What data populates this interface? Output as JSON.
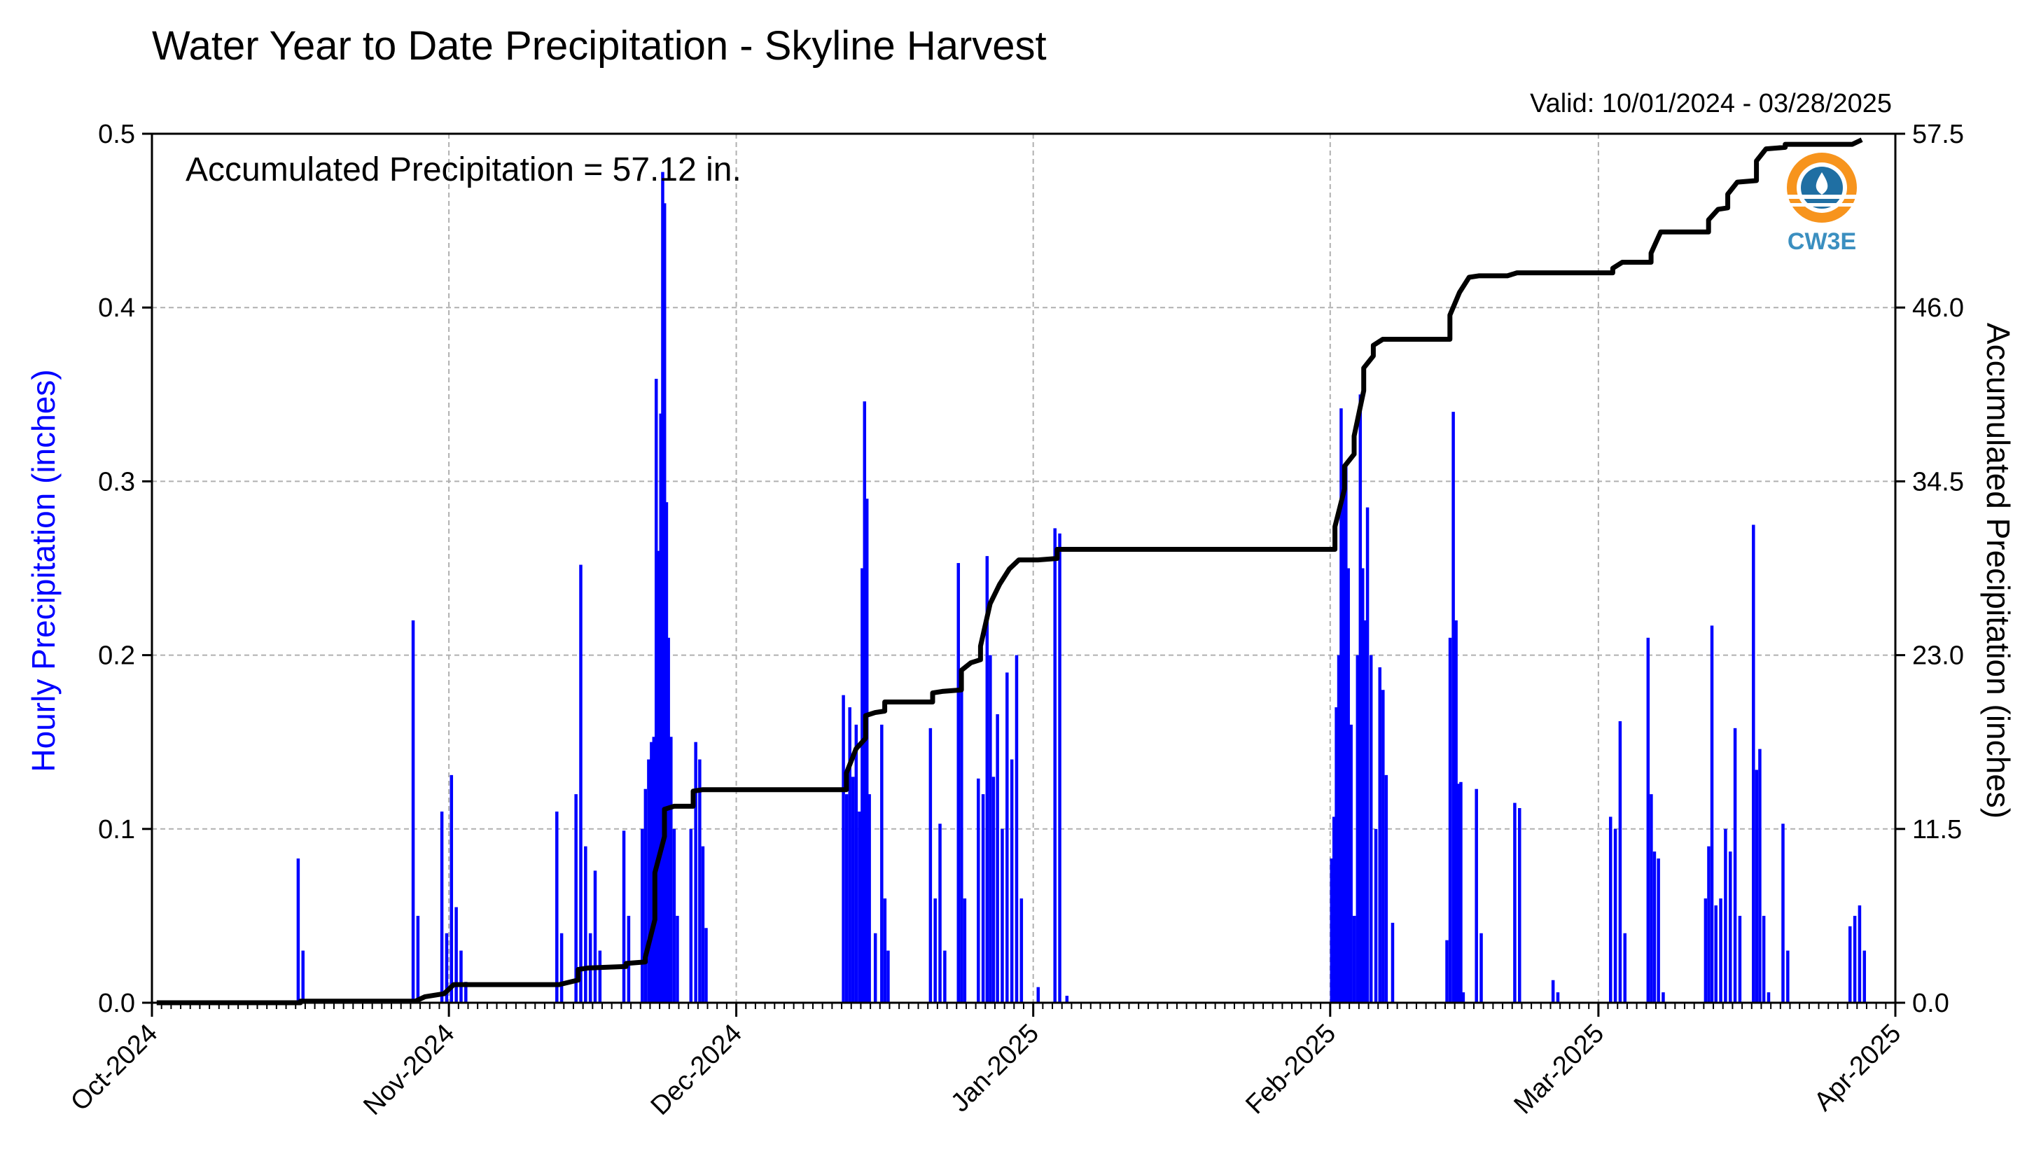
{
  "chart_data": {
    "type": "bar+line",
    "title": "Water Year to Date Precipitation - Skyline Harvest",
    "valid_label": "Valid: 10/01/2024 - 03/28/2025",
    "annotation": "Accumulated Precipitation = 57.12 in.",
    "left_axis": {
      "label": "Hourly Precipitation (inches)",
      "ylim": [
        0,
        0.5
      ],
      "ticks": [
        "0.0",
        "0.1",
        "0.2",
        "0.3",
        "0.4",
        "0.5"
      ],
      "color": "#0000ff"
    },
    "right_axis": {
      "label": "Accumulated Precipitation (inches)",
      "ylim": [
        0,
        57.5
      ],
      "ticks": [
        "0.0",
        "11.5",
        "23.0",
        "34.5",
        "46.0",
        "57.5"
      ]
    },
    "x_axis": {
      "start": "2024-10-01",
      "end": "2025-04-01",
      "month_ticks": [
        "Oct-2024",
        "Nov-2024",
        "Dec-2024",
        "Jan-2025",
        "Feb-2025",
        "Mar-2025",
        "Apr-2025"
      ]
    },
    "grid": true,
    "series": [
      {
        "name": "Hourly Precipitation (inches)",
        "type": "bar",
        "color": "#0000ff",
        "points": [
          [
            "2024-10-16",
            0.083
          ],
          [
            "2024-10-16",
            0.03
          ],
          [
            "2024-10-28",
            0.22
          ],
          [
            "2024-10-28",
            0.05
          ],
          [
            "2024-10-31",
            0.11
          ],
          [
            "2024-10-31",
            0.04
          ],
          [
            "2024-11-01",
            0.131
          ],
          [
            "2024-11-01",
            0.055
          ],
          [
            "2024-11-02",
            0.03
          ],
          [
            "2024-11-02",
            0.012
          ],
          [
            "2024-11-12",
            0.11
          ],
          [
            "2024-11-12",
            0.04
          ],
          [
            "2024-11-14",
            0.12
          ],
          [
            "2024-11-14",
            0.252
          ],
          [
            "2024-11-15",
            0.09
          ],
          [
            "2024-11-15",
            0.04
          ],
          [
            "2024-11-16",
            0.076
          ],
          [
            "2024-11-16",
            0.03
          ],
          [
            "2024-11-19",
            0.099
          ],
          [
            "2024-11-19",
            0.05
          ],
          [
            "2024-11-21",
            0.1
          ],
          [
            "2024-11-21",
            0.123
          ],
          [
            "2024-11-21",
            0.14
          ],
          [
            "2024-11-22",
            0.15
          ],
          [
            "2024-11-22",
            0.153
          ],
          [
            "2024-11-22",
            0.359
          ],
          [
            "2024-11-22",
            0.26
          ],
          [
            "2024-11-23",
            0.339
          ],
          [
            "2024-11-23",
            0.478
          ],
          [
            "2024-11-23",
            0.46
          ],
          [
            "2024-11-23",
            0.288
          ],
          [
            "2024-11-23",
            0.21
          ],
          [
            "2024-11-24",
            0.153
          ],
          [
            "2024-11-24",
            0.1
          ],
          [
            "2024-11-24",
            0.05
          ],
          [
            "2024-11-26",
            0.1
          ],
          [
            "2024-11-26",
            0.15
          ],
          [
            "2024-11-27",
            0.14
          ],
          [
            "2024-11-27",
            0.09
          ],
          [
            "2024-11-27",
            0.043
          ],
          [
            "2024-12-12",
            0.177
          ],
          [
            "2024-12-12",
            0.12
          ],
          [
            "2024-12-12",
            0.17
          ],
          [
            "2024-12-13",
            0.13
          ],
          [
            "2024-12-13",
            0.16
          ],
          [
            "2024-12-13",
            0.11
          ],
          [
            "2024-12-14",
            0.25
          ],
          [
            "2024-12-14",
            0.346
          ],
          [
            "2024-12-14",
            0.29
          ],
          [
            "2024-12-14",
            0.12
          ],
          [
            "2024-12-15",
            0.04
          ],
          [
            "2024-12-16",
            0.16
          ],
          [
            "2024-12-16",
            0.06
          ],
          [
            "2024-12-16",
            0.03
          ],
          [
            "2024-12-21",
            0.158
          ],
          [
            "2024-12-21",
            0.06
          ],
          [
            "2024-12-22",
            0.103
          ],
          [
            "2024-12-22",
            0.03
          ],
          [
            "2024-12-24",
            0.253
          ],
          [
            "2024-12-24",
            0.18
          ],
          [
            "2024-12-24",
            0.06
          ],
          [
            "2024-12-26",
            0.129
          ],
          [
            "2024-12-26",
            0.12
          ],
          [
            "2024-12-27",
            0.257
          ],
          [
            "2024-12-27",
            0.2
          ],
          [
            "2024-12-27",
            0.13
          ],
          [
            "2024-12-28",
            0.166
          ],
          [
            "2024-12-28",
            0.1
          ],
          [
            "2024-12-29",
            0.19
          ],
          [
            "2024-12-29",
            0.14
          ],
          [
            "2024-12-30",
            0.2
          ],
          [
            "2024-12-30",
            0.06
          ],
          [
            "2025-01-01",
            0.009
          ],
          [
            "2025-01-03",
            0.273
          ],
          [
            "2025-01-03",
            0.27
          ],
          [
            "2025-01-04",
            0.004
          ],
          [
            "2025-02-01",
            0.083
          ],
          [
            "2025-02-01",
            0.107
          ],
          [
            "2025-02-01",
            0.17
          ],
          [
            "2025-02-01",
            0.2
          ],
          [
            "2025-02-02",
            0.342
          ],
          [
            "2025-02-02",
            0.3
          ],
          [
            "2025-02-02",
            0.31
          ],
          [
            "2025-02-02",
            0.25
          ],
          [
            "2025-02-03",
            0.16
          ],
          [
            "2025-02-03",
            0.05
          ],
          [
            "2025-02-03",
            0.2
          ],
          [
            "2025-02-04",
            0.35
          ],
          [
            "2025-02-04",
            0.25
          ],
          [
            "2025-02-04",
            0.22
          ],
          [
            "2025-02-04",
            0.285
          ],
          [
            "2025-02-05",
            0.2
          ],
          [
            "2025-02-05",
            0.1
          ],
          [
            "2025-02-06",
            0.193
          ],
          [
            "2025-02-06",
            0.18
          ],
          [
            "2025-02-06",
            0.131
          ],
          [
            "2025-02-07",
            0.046
          ],
          [
            "2025-02-13",
            0.036
          ],
          [
            "2025-02-13",
            0.21
          ],
          [
            "2025-02-13",
            0.34
          ],
          [
            "2025-02-14",
            0.22
          ],
          [
            "2025-02-14",
            0.126
          ],
          [
            "2025-02-14",
            0.127
          ],
          [
            "2025-02-14",
            0.006
          ],
          [
            "2025-02-16",
            0.123
          ],
          [
            "2025-02-16",
            0.04
          ],
          [
            "2025-02-20",
            0.115
          ],
          [
            "2025-02-20",
            0.112
          ],
          [
            "2025-02-24",
            0.013
          ],
          [
            "2025-02-24",
            0.006
          ],
          [
            "2025-03-02",
            0.107
          ],
          [
            "2025-03-02",
            0.1
          ],
          [
            "2025-03-03",
            0.162
          ],
          [
            "2025-03-03",
            0.04
          ],
          [
            "2025-03-06",
            0.21
          ],
          [
            "2025-03-06",
            0.12
          ],
          [
            "2025-03-06",
            0.087
          ],
          [
            "2025-03-07",
            0.083
          ],
          [
            "2025-03-07",
            0.006
          ],
          [
            "2025-03-12",
            0.06
          ],
          [
            "2025-03-12",
            0.09
          ],
          [
            "2025-03-12",
            0.217
          ],
          [
            "2025-03-13",
            0.056
          ],
          [
            "2025-03-13",
            0.06
          ],
          [
            "2025-03-14",
            0.1
          ],
          [
            "2025-03-14",
            0.087
          ],
          [
            "2025-03-15",
            0.158
          ],
          [
            "2025-03-15",
            0.05
          ],
          [
            "2025-03-17",
            0.275
          ],
          [
            "2025-03-17",
            0.134
          ],
          [
            "2025-03-17",
            0.146
          ],
          [
            "2025-03-18",
            0.05
          ],
          [
            "2025-03-18",
            0.006
          ],
          [
            "2025-03-20",
            0.103
          ],
          [
            "2025-03-20",
            0.03
          ],
          [
            "2025-03-27",
            0.044
          ],
          [
            "2025-03-27",
            0.05
          ],
          [
            "2025-03-28",
            0.056
          ],
          [
            "2025-03-28",
            0.03
          ]
        ]
      },
      {
        "name": "Accumulated Precipitation (inches)",
        "type": "line",
        "color": "#000000",
        "points": [
          [
            "2024-10-01",
            0.0
          ],
          [
            "2024-10-16",
            0.0
          ],
          [
            "2024-10-16",
            0.1
          ],
          [
            "2024-10-28",
            0.1
          ],
          [
            "2024-10-29",
            0.4
          ],
          [
            "2024-10-31",
            0.6
          ],
          [
            "2024-11-01",
            1.2
          ],
          [
            "2024-11-12",
            1.2
          ],
          [
            "2024-11-14",
            1.5
          ],
          [
            "2024-11-14",
            2.2
          ],
          [
            "2024-11-15",
            2.3
          ],
          [
            "2024-11-19",
            2.4
          ],
          [
            "2024-11-19",
            2.6
          ],
          [
            "2024-11-21",
            2.7
          ],
          [
            "2024-11-21",
            3.0
          ],
          [
            "2024-11-22",
            5.5
          ],
          [
            "2024-11-22",
            7.4
          ],
          [
            "2024-11-22",
            8.6
          ],
          [
            "2024-11-23",
            11.0
          ],
          [
            "2024-11-23",
            12.8
          ],
          [
            "2024-11-24",
            13.0
          ],
          [
            "2024-11-26",
            13.0
          ],
          [
            "2024-11-26",
            14.0
          ],
          [
            "2024-11-27",
            14.1
          ],
          [
            "2024-12-12",
            14.1
          ],
          [
            "2024-12-12",
            15.2
          ],
          [
            "2024-12-13",
            16.8
          ],
          [
            "2024-12-14",
            17.5
          ],
          [
            "2024-12-14",
            19.0
          ],
          [
            "2024-12-15",
            19.2
          ],
          [
            "2024-12-16",
            19.3
          ],
          [
            "2024-12-16",
            19.9
          ],
          [
            "2024-12-17",
            19.9
          ],
          [
            "2024-12-21",
            19.9
          ],
          [
            "2024-12-21",
            20.5
          ],
          [
            "2024-12-22",
            20.6
          ],
          [
            "2024-12-24",
            20.7
          ],
          [
            "2024-12-24",
            22.0
          ],
          [
            "2024-12-25",
            22.5
          ],
          [
            "2024-12-26",
            22.7
          ],
          [
            "2024-12-26",
            23.6
          ],
          [
            "2024-12-27",
            26.4
          ],
          [
            "2024-12-28",
            27.7
          ],
          [
            "2024-12-29",
            28.7
          ],
          [
            "2024-12-30",
            29.3
          ],
          [
            "2025-01-01",
            29.3
          ],
          [
            "2025-01-03",
            29.4
          ],
          [
            "2025-01-03",
            30.0
          ],
          [
            "2025-02-01",
            30.0
          ],
          [
            "2025-02-01",
            31.5
          ],
          [
            "2025-02-02",
            34.0
          ],
          [
            "2025-02-02",
            35.5
          ],
          [
            "2025-02-03",
            36.3
          ],
          [
            "2025-02-03",
            37.5
          ],
          [
            "2025-02-04",
            40.5
          ],
          [
            "2025-02-04",
            42.0
          ],
          [
            "2025-02-05",
            42.8
          ],
          [
            "2025-02-05",
            43.5
          ],
          [
            "2025-02-06",
            43.9
          ],
          [
            "2025-02-07",
            43.9
          ],
          [
            "2025-02-13",
            43.9
          ],
          [
            "2025-02-13",
            45.5
          ],
          [
            "2025-02-14",
            47.0
          ],
          [
            "2025-02-15",
            48.0
          ],
          [
            "2025-02-16",
            48.1
          ],
          [
            "2025-02-19",
            48.1
          ],
          [
            "2025-02-20",
            48.3
          ],
          [
            "2025-03-02",
            48.3
          ],
          [
            "2025-03-02",
            48.6
          ],
          [
            "2025-03-03",
            49.0
          ],
          [
            "2025-03-06",
            49.0
          ],
          [
            "2025-03-06",
            49.6
          ],
          [
            "2025-03-07",
            51.0
          ],
          [
            "2025-03-12",
            51.0
          ],
          [
            "2025-03-12",
            51.8
          ],
          [
            "2025-03-13",
            52.5
          ],
          [
            "2025-03-14",
            52.6
          ],
          [
            "2025-03-14",
            53.5
          ],
          [
            "2025-03-15",
            54.3
          ],
          [
            "2025-03-17",
            54.4
          ],
          [
            "2025-03-17",
            55.7
          ],
          [
            "2025-03-18",
            56.5
          ],
          [
            "2025-03-20",
            56.6
          ],
          [
            "2025-03-20",
            56.8
          ],
          [
            "2025-03-27",
            56.8
          ],
          [
            "2025-03-28",
            57.1
          ]
        ]
      }
    ]
  },
  "logo": {
    "text": "CW3E",
    "colors": {
      "orange": "#f7941d",
      "blue": "#3b8fc0",
      "dark": "#1f6fa3"
    }
  }
}
